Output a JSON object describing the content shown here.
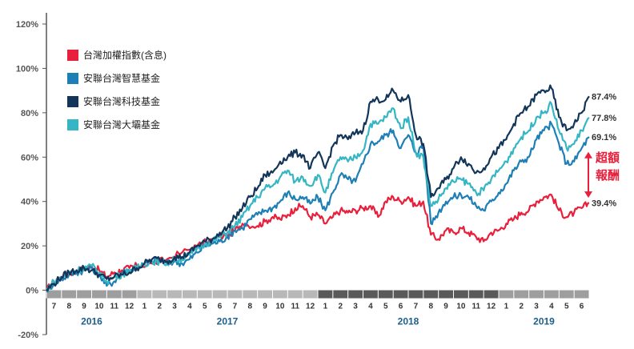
{
  "chart_data": {
    "type": "line",
    "title": "",
    "xlabel": "",
    "ylabel": "",
    "ylim": [
      -20,
      120
    ],
    "y_ticks": [
      "120%",
      "100%",
      "80%",
      "60%",
      "40%",
      "20%",
      "0%",
      "-20%"
    ],
    "y_tick_values": [
      120,
      100,
      80,
      60,
      40,
      20,
      0,
      -20
    ],
    "x_month_labels": [
      "7",
      "8",
      "9",
      "10",
      "11",
      "12",
      "1",
      "2",
      "3",
      "4",
      "5",
      "6",
      "7",
      "8",
      "9",
      "10",
      "11",
      "12",
      "1",
      "2",
      "3",
      "4",
      "5",
      "6",
      "7",
      "8",
      "9",
      "10",
      "11",
      "12",
      "1",
      "2",
      "3",
      "4",
      "5",
      "6"
    ],
    "years": [
      {
        "label": "2016",
        "start": 0,
        "end": 6
      },
      {
        "label": "2017",
        "start": 6,
        "end": 18
      },
      {
        "label": "2018",
        "start": 18,
        "end": 30
      },
      {
        "label": "2019",
        "start": 30,
        "end": 36
      }
    ],
    "x_range": [
      0,
      36
    ],
    "legend_position": "top-left",
    "series": [
      {
        "name": "台灣加權指數(含息)",
        "color": "#e8203c",
        "end_label": "39.4%",
        "points": [
          [
            0,
            0
          ],
          [
            0.5,
            4
          ],
          [
            1,
            6
          ],
          [
            1.5,
            8
          ],
          [
            2,
            8
          ],
          [
            2.5,
            10
          ],
          [
            3,
            11
          ],
          [
            3.5,
            9
          ],
          [
            4,
            6
          ],
          [
            4.5,
            8
          ],
          [
            5,
            9
          ],
          [
            5.5,
            10
          ],
          [
            6,
            11
          ],
          [
            7,
            12
          ],
          [
            8,
            14
          ],
          [
            9,
            17
          ],
          [
            10,
            20
          ],
          [
            11,
            23
          ],
          [
            12,
            25
          ],
          [
            12.5,
            27
          ],
          [
            13,
            30
          ],
          [
            14,
            29
          ],
          [
            14.5,
            31
          ],
          [
            15,
            33
          ],
          [
            15.5,
            32
          ],
          [
            16,
            34
          ],
          [
            16.5,
            37
          ],
          [
            17,
            38
          ],
          [
            17.5,
            33
          ],
          [
            18,
            34
          ],
          [
            18.5,
            30
          ],
          [
            19,
            33
          ],
          [
            19.5,
            36
          ],
          [
            20,
            35
          ],
          [
            20.5,
            36
          ],
          [
            21,
            37
          ],
          [
            21.5,
            38
          ],
          [
            22,
            33
          ],
          [
            22.5,
            40
          ],
          [
            23,
            42
          ],
          [
            23.5,
            40
          ],
          [
            24,
            42
          ],
          [
            24.5,
            38
          ],
          [
            25,
            40
          ],
          [
            25.5,
            25
          ],
          [
            26,
            23
          ],
          [
            26.5,
            27
          ],
          [
            27,
            26
          ],
          [
            27.5,
            28
          ],
          [
            28,
            26
          ],
          [
            28.5,
            24
          ],
          [
            29,
            22
          ],
          [
            29.5,
            26
          ],
          [
            30,
            27
          ],
          [
            30.5,
            30
          ],
          [
            31,
            32
          ],
          [
            31.5,
            35
          ],
          [
            32,
            36
          ],
          [
            32.5,
            40
          ],
          [
            33,
            42
          ],
          [
            33.5,
            43
          ],
          [
            34,
            36
          ],
          [
            34.5,
            33
          ],
          [
            35,
            35
          ],
          [
            35.5,
            37
          ],
          [
            36,
            39.4
          ]
        ]
      },
      {
        "name": "安聯台灣智慧基金",
        "color": "#1d7fb5",
        "end_label": "69.1%",
        "points": [
          [
            0,
            0
          ],
          [
            0.5,
            3
          ],
          [
            1,
            5
          ],
          [
            1.5,
            7
          ],
          [
            2,
            8
          ],
          [
            2.5,
            9
          ],
          [
            3,
            10
          ],
          [
            3.5,
            7
          ],
          [
            4,
            2
          ],
          [
            4.5,
            4
          ],
          [
            5,
            8
          ],
          [
            5.5,
            9
          ],
          [
            6,
            10
          ],
          [
            6.5,
            12
          ],
          [
            7,
            13
          ],
          [
            7.5,
            14
          ],
          [
            8,
            12
          ],
          [
            8.5,
            13
          ],
          [
            9,
            12
          ],
          [
            9.5,
            14
          ],
          [
            10,
            17
          ],
          [
            10.5,
            20
          ],
          [
            11,
            21
          ],
          [
            11.5,
            22
          ],
          [
            12,
            24
          ],
          [
            12.5,
            27
          ],
          [
            13,
            28
          ],
          [
            13.5,
            32
          ],
          [
            14,
            34
          ],
          [
            14.5,
            36
          ],
          [
            15,
            37
          ],
          [
            15.5,
            40
          ],
          [
            16,
            44
          ],
          [
            16.5,
            41
          ],
          [
            17,
            42
          ],
          [
            17.5,
            39
          ],
          [
            18,
            42
          ],
          [
            18.5,
            36
          ],
          [
            19,
            44
          ],
          [
            19.5,
            52
          ],
          [
            20,
            50
          ],
          [
            20.5,
            49
          ],
          [
            21,
            57
          ],
          [
            21.5,
            66
          ],
          [
            22,
            67
          ],
          [
            22.5,
            70
          ],
          [
            23,
            72
          ],
          [
            23.5,
            64
          ],
          [
            24,
            70
          ],
          [
            24.5,
            62
          ],
          [
            25,
            65
          ],
          [
            25.5,
            30
          ],
          [
            26,
            35
          ],
          [
            26.5,
            40
          ],
          [
            27,
            42
          ],
          [
            27.5,
            43
          ],
          [
            28,
            42
          ],
          [
            28.5,
            38
          ],
          [
            29,
            36
          ],
          [
            29.5,
            40
          ],
          [
            30,
            44
          ],
          [
            30.5,
            48
          ],
          [
            31,
            54
          ],
          [
            31.5,
            58
          ],
          [
            32,
            60
          ],
          [
            32.5,
            68
          ],
          [
            33,
            72
          ],
          [
            33.5,
            75
          ],
          [
            34,
            66
          ],
          [
            34.5,
            57
          ],
          [
            35,
            58
          ],
          [
            35.5,
            64
          ],
          [
            36,
            69.1
          ]
        ]
      },
      {
        "name": "安聯台灣科技基金",
        "color": "#13355a",
        "end_label": "87.4%",
        "points": [
          [
            0,
            0
          ],
          [
            0.5,
            3
          ],
          [
            1,
            6
          ],
          [
            1.5,
            8
          ],
          [
            2,
            9
          ],
          [
            2.5,
            10
          ],
          [
            3,
            9
          ],
          [
            3.5,
            7
          ],
          [
            4,
            5
          ],
          [
            4.5,
            6
          ],
          [
            5,
            7
          ],
          [
            5.5,
            8
          ],
          [
            6,
            10
          ],
          [
            6.5,
            12
          ],
          [
            7,
            14
          ],
          [
            7.5,
            14
          ],
          [
            8,
            13
          ],
          [
            8.5,
            15
          ],
          [
            9,
            15
          ],
          [
            9.5,
            17
          ],
          [
            10,
            20
          ],
          [
            10.5,
            22
          ],
          [
            11,
            23
          ],
          [
            11.5,
            26
          ],
          [
            12,
            28
          ],
          [
            12.5,
            33
          ],
          [
            13,
            37
          ],
          [
            13.5,
            42
          ],
          [
            14,
            46
          ],
          [
            14.5,
            52
          ],
          [
            15,
            53
          ],
          [
            15.5,
            58
          ],
          [
            16,
            60
          ],
          [
            16.5,
            62
          ],
          [
            17,
            61
          ],
          [
            17.5,
            55
          ],
          [
            18,
            62
          ],
          [
            18.5,
            55
          ],
          [
            19,
            65
          ],
          [
            19.5,
            70
          ],
          [
            20,
            68
          ],
          [
            20.5,
            71
          ],
          [
            21,
            72
          ],
          [
            21.5,
            85
          ],
          [
            22,
            86
          ],
          [
            22.5,
            86
          ],
          [
            23,
            90
          ],
          [
            23.5,
            85
          ],
          [
            24,
            88
          ],
          [
            24.5,
            70
          ],
          [
            25,
            66
          ],
          [
            25.5,
            42
          ],
          [
            26,
            46
          ],
          [
            26.5,
            50
          ],
          [
            27,
            55
          ],
          [
            27.5,
            60
          ],
          [
            28,
            57
          ],
          [
            28.5,
            53
          ],
          [
            29,
            55
          ],
          [
            29.5,
            60
          ],
          [
            30,
            64
          ],
          [
            30.5,
            68
          ],
          [
            31,
            75
          ],
          [
            31.5,
            80
          ],
          [
            32,
            83
          ],
          [
            32.5,
            88
          ],
          [
            33,
            90
          ],
          [
            33.5,
            91
          ],
          [
            34,
            78
          ],
          [
            34.5,
            72
          ],
          [
            35,
            75
          ],
          [
            35.5,
            80
          ],
          [
            36,
            87.4
          ]
        ]
      },
      {
        "name": "安聯台灣大壩基金",
        "color": "#36b6c4",
        "end_label": "77.8%",
        "points": [
          [
            0,
            0
          ],
          [
            0.5,
            4
          ],
          [
            1,
            6
          ],
          [
            1.5,
            8
          ],
          [
            2,
            9
          ],
          [
            2.5,
            10
          ],
          [
            3,
            11
          ],
          [
            3.5,
            8
          ],
          [
            4,
            4
          ],
          [
            4.5,
            6
          ],
          [
            5,
            7
          ],
          [
            5.5,
            9
          ],
          [
            6,
            10
          ],
          [
            6.5,
            12
          ],
          [
            7,
            13
          ],
          [
            7.5,
            13
          ],
          [
            8,
            12
          ],
          [
            8.5,
            14
          ],
          [
            9,
            14
          ],
          [
            9.5,
            16
          ],
          [
            10,
            19
          ],
          [
            10.5,
            21
          ],
          [
            11,
            22
          ],
          [
            11.5,
            24
          ],
          [
            12,
            26
          ],
          [
            12.5,
            29
          ],
          [
            13,
            33
          ],
          [
            13.5,
            38
          ],
          [
            14,
            42
          ],
          [
            14.5,
            46
          ],
          [
            15,
            47
          ],
          [
            15.5,
            51
          ],
          [
            16,
            54
          ],
          [
            16.5,
            49
          ],
          [
            17,
            51
          ],
          [
            17.5,
            47
          ],
          [
            18,
            52
          ],
          [
            18.5,
            44
          ],
          [
            19,
            53
          ],
          [
            19.5,
            60
          ],
          [
            20,
            58
          ],
          [
            20.5,
            60
          ],
          [
            21,
            63
          ],
          [
            21.5,
            75
          ],
          [
            22,
            75
          ],
          [
            22.5,
            78
          ],
          [
            23,
            82
          ],
          [
            23.5,
            73
          ],
          [
            24,
            78
          ],
          [
            24.5,
            62
          ],
          [
            25,
            60
          ],
          [
            25.5,
            38
          ],
          [
            26,
            41
          ],
          [
            26.5,
            46
          ],
          [
            27,
            49
          ],
          [
            27.5,
            50
          ],
          [
            28,
            48
          ],
          [
            28.5,
            44
          ],
          [
            29,
            45
          ],
          [
            29.5,
            50
          ],
          [
            30,
            54
          ],
          [
            30.5,
            58
          ],
          [
            31,
            64
          ],
          [
            31.5,
            69
          ],
          [
            32,
            72
          ],
          [
            32.5,
            78
          ],
          [
            33,
            80
          ],
          [
            33.5,
            84
          ],
          [
            34,
            72
          ],
          [
            34.5,
            64
          ],
          [
            35,
            66
          ],
          [
            35.5,
            72
          ],
          [
            36,
            77.8
          ]
        ]
      }
    ],
    "annotation": {
      "line1": "超額",
      "line2": "報酬",
      "color": "#e8203c"
    }
  }
}
